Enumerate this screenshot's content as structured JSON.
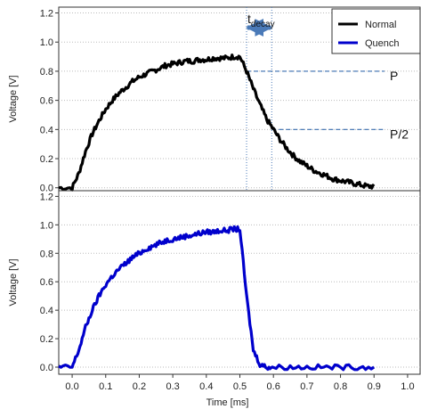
{
  "chart_data": {
    "type": "line",
    "xlabel": "Time [ms]",
    "x_ticks": [
      "0.0",
      "0.1",
      "0.2",
      "0.3",
      "0.4",
      "0.5",
      "0.6",
      "0.7",
      "0.8",
      "0.9",
      "1.0"
    ],
    "xlim": [
      -0.04,
      1.04
    ],
    "legend_placement": "top-right",
    "panels": [
      {
        "ylabel": "Voltage [V]",
        "ylim": [
          -0.02,
          1.24
        ],
        "y_ticks": [
          "0.0",
          "0.2",
          "0.4",
          "0.6",
          "0.8",
          "1.0",
          "1.2"
        ],
        "grid": "horizontal dotted",
        "series": [
          {
            "name": "Normal",
            "color": "#000000",
            "x": [
              -0.04,
              0.0,
              0.02,
              0.04,
              0.06,
              0.08,
              0.1,
              0.12,
              0.14,
              0.16,
              0.18,
              0.2,
              0.22,
              0.24,
              0.26,
              0.28,
              0.3,
              0.32,
              0.34,
              0.36,
              0.38,
              0.4,
              0.42,
              0.44,
              0.46,
              0.48,
              0.5,
              0.52,
              0.54,
              0.56,
              0.58,
              0.6,
              0.62,
              0.64,
              0.66,
              0.68,
              0.7,
              0.72,
              0.74,
              0.76,
              0.78,
              0.8,
              0.82,
              0.84,
              0.86,
              0.88,
              0.9
            ],
            "values": [
              0.0,
              0.0,
              0.1,
              0.25,
              0.37,
              0.46,
              0.54,
              0.6,
              0.65,
              0.69,
              0.73,
              0.76,
              0.78,
              0.8,
              0.82,
              0.84,
              0.85,
              0.86,
              0.87,
              0.87,
              0.88,
              0.88,
              0.89,
              0.89,
              0.89,
              0.9,
              0.9,
              0.8,
              0.68,
              0.57,
              0.47,
              0.4,
              0.33,
              0.27,
              0.22,
              0.18,
              0.15,
              0.12,
              0.1,
              0.08,
              0.06,
              0.05,
              0.04,
              0.03,
              0.02,
              0.01,
              0.01
            ]
          }
        ],
        "annotations": {
          "t_decay": {
            "main": "t",
            "sub": "decay",
            "x_start": 0.52,
            "x_end": 0.595
          },
          "levels": [
            {
              "label": "P",
              "value": 0.8
            },
            {
              "label": "P/2",
              "value": 0.4
            }
          ]
        }
      },
      {
        "ylabel": "Voltage [V]",
        "ylim": [
          -0.05,
          1.24
        ],
        "y_ticks": [
          "0.0",
          "0.2",
          "0.4",
          "0.6",
          "0.8",
          "1.0",
          "1.2"
        ],
        "grid": "horizontal dotted",
        "series": [
          {
            "name": "Quench",
            "color": "#0000cc",
            "x": [
              -0.04,
              0.0,
              0.02,
              0.04,
              0.06,
              0.08,
              0.1,
              0.12,
              0.14,
              0.16,
              0.18,
              0.2,
              0.22,
              0.24,
              0.26,
              0.28,
              0.3,
              0.32,
              0.34,
              0.36,
              0.38,
              0.4,
              0.42,
              0.44,
              0.46,
              0.48,
              0.5,
              0.52,
              0.54,
              0.56,
              0.58,
              0.6,
              0.65,
              0.7,
              0.75,
              0.8,
              0.85,
              0.9
            ],
            "values": [
              0.0,
              0.0,
              0.12,
              0.28,
              0.4,
              0.5,
              0.58,
              0.64,
              0.69,
              0.73,
              0.77,
              0.8,
              0.83,
              0.85,
              0.87,
              0.89,
              0.9,
              0.91,
              0.92,
              0.93,
              0.94,
              0.95,
              0.95,
              0.96,
              0.96,
              0.97,
              0.97,
              0.5,
              0.12,
              0.02,
              0.0,
              0.0,
              0.0,
              0.0,
              0.0,
              0.0,
              0.0,
              0.0
            ]
          }
        ]
      }
    ]
  }
}
